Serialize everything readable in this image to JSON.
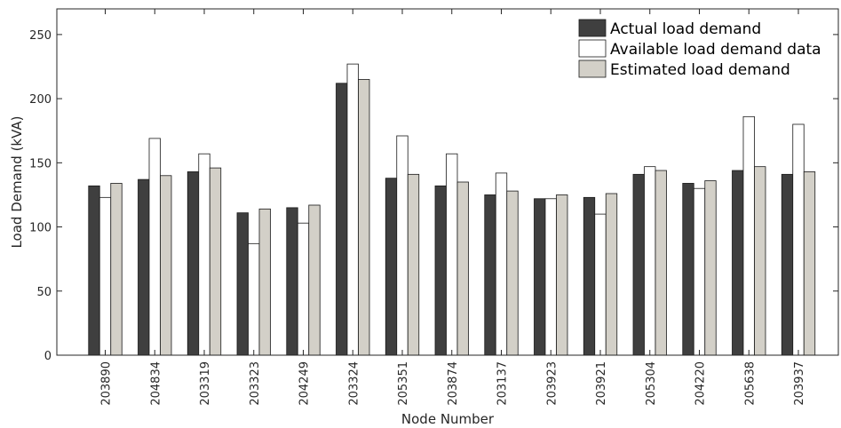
{
  "chart_data": {
    "type": "bar",
    "title": "",
    "xlabel": "Node Number",
    "ylabel": "Load Demand (kVA)",
    "ylim": [
      0,
      270
    ],
    "yticks": [
      0,
      50,
      100,
      150,
      200,
      250
    ],
    "grid": false,
    "legend_placement": "top-right",
    "categories": [
      "203890",
      "204834",
      "203319",
      "203323",
      "204249",
      "203324",
      "205351",
      "203874",
      "203137",
      "203923",
      "203921",
      "205304",
      "204220",
      "205638",
      "203937"
    ],
    "series": [
      {
        "name": "Actual load demand",
        "color": "#3f3f3f",
        "values": [
          132,
          137,
          143,
          111,
          115,
          212,
          138,
          132,
          125,
          122,
          123,
          141,
          134,
          144,
          141
        ]
      },
      {
        "name": "Available load demand data",
        "color": "#ffffff",
        "values": [
          123,
          169,
          157,
          87,
          103,
          227,
          171,
          157,
          142,
          122,
          110,
          147,
          130,
          186,
          180
        ]
      },
      {
        "name": "Estimated load demand",
        "color": "#d3d0c8",
        "values": [
          134,
          140,
          146,
          114,
          117,
          215,
          141,
          135,
          128,
          125,
          126,
          144,
          136,
          147,
          143
        ]
      }
    ]
  }
}
